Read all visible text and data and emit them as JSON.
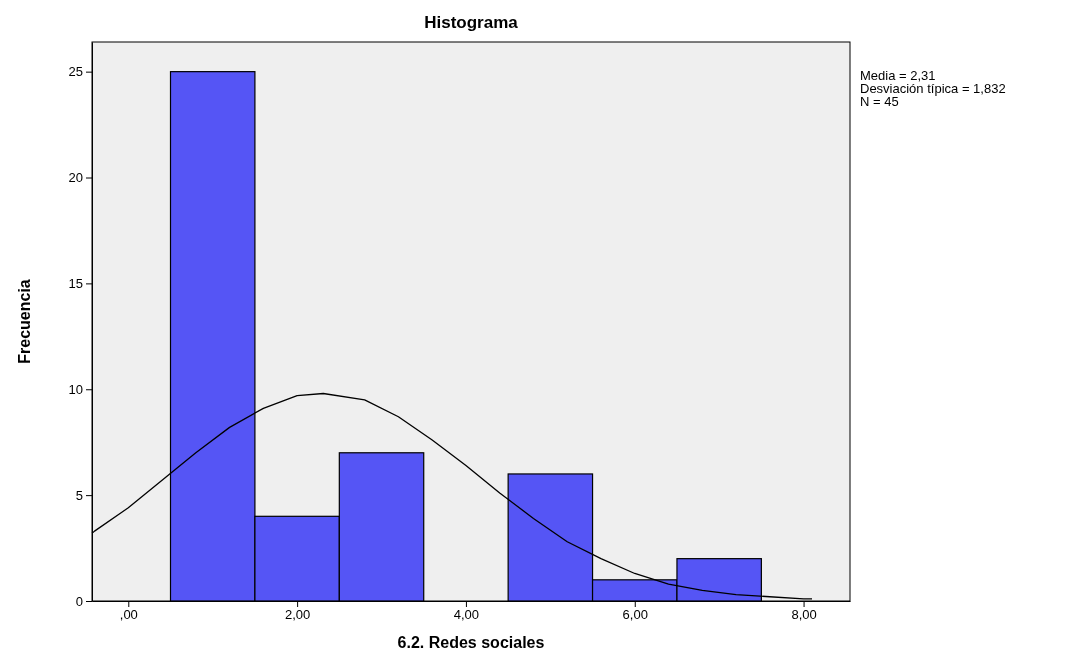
{
  "chart_data": {
    "type": "histogram",
    "title": "Histograma",
    "xlabel": "6.2. Redes sociales",
    "ylabel": "Frecuencia",
    "bins": [
      0.5,
      1.5,
      2.5,
      3.5,
      4.5,
      5.5,
      6.5,
      7.5
    ],
    "values": [
      25,
      4,
      7,
      0,
      6,
      1,
      2
    ],
    "color": "#5555f5",
    "series": [
      {
        "type": "line",
        "color": "#000000",
        "x": [
          -0.43,
          -0.4,
          0,
          0.4,
          0.8,
          1.2,
          1.6,
          2.0,
          2.31,
          2.8,
          3.2,
          3.6,
          4.0,
          4.4,
          4.8,
          5.2,
          5.6,
          6.0,
          6.4,
          6.8,
          7.2,
          7.6,
          8.0,
          8.1
        ],
        "values": [
          3.2,
          3.3,
          4.4,
          5.7,
          7.0,
          8.2,
          9.1,
          9.7,
          9.8,
          9.5,
          8.7,
          7.6,
          6.4,
          5.1,
          3.9,
          2.8,
          2.0,
          1.3,
          0.8,
          0.5,
          0.3,
          0.2,
          0.1,
          0.1
        ]
      }
    ],
    "xlim": [
      -0.43,
      8.55
    ],
    "xticks": [
      {
        "value": 0,
        "label": ",00"
      },
      {
        "value": 2,
        "label": "2,00"
      },
      {
        "value": 4,
        "label": "4,00"
      },
      {
        "value": 6,
        "label": "6,00"
      },
      {
        "value": 8,
        "label": "8,00"
      }
    ],
    "ylim": [
      0,
      26.4
    ],
    "yticks": [
      0,
      5,
      10,
      15,
      20,
      25
    ],
    "annotations": [
      "Media = 2,31",
      "Desviación típica = 1,832",
      "N = 45"
    ]
  }
}
